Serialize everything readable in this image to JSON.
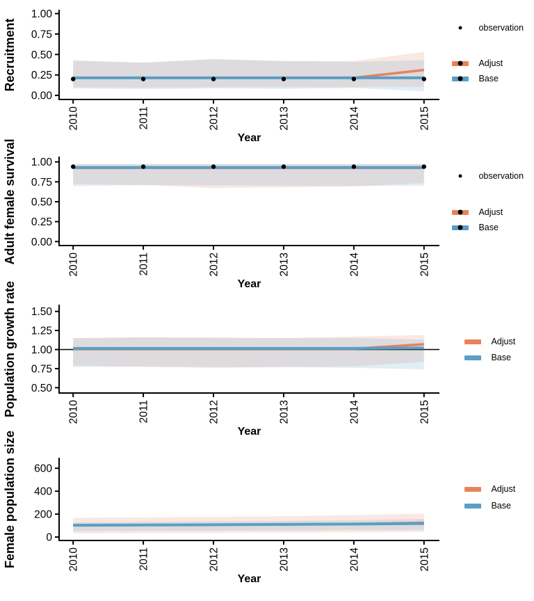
{
  "colors": {
    "adjust": "#E8825C",
    "base": "#5B9EC6",
    "adjust_ribbon": "rgba(230,125,92,0.18)",
    "base_ribbon": "rgba(91,158,198,0.18)",
    "observation": "#000000",
    "axis": "#000000",
    "reference_line": "#000000"
  },
  "legend_labels": {
    "observation": "observation",
    "adjust": "Adjust",
    "base": "Base"
  },
  "chart_data": [
    {
      "type": "line",
      "y_title": "Recruitment",
      "x_title": "Year",
      "legend_position": "right",
      "grid": false,
      "x_ticks": [
        2010,
        2011,
        2012,
        2013,
        2014,
        2015
      ],
      "y_ticks": [
        {
          "v": 1.0,
          "label": "1.00"
        },
        {
          "v": 0.75,
          "label": "0.75"
        },
        {
          "v": 0.5,
          "label": "0.50"
        },
        {
          "v": 0.25,
          "label": "0.25"
        },
        {
          "v": 0.0,
          "label": "0.00"
        }
      ],
      "xlim": [
        2009.8,
        2015.22
      ],
      "ylim": [
        -0.05,
        1.03
      ],
      "hline": null,
      "series": {
        "observation": {
          "x": [
            2010,
            2011,
            2012,
            2013,
            2014,
            2015
          ],
          "y": [
            0.2,
            0.2,
            0.2,
            0.2,
            0.2,
            0.2
          ]
        },
        "adjust": {
          "x": [
            2010,
            2011,
            2012,
            2013,
            2014,
            2015
          ],
          "y": [
            0.215,
            0.215,
            0.215,
            0.215,
            0.215,
            0.31
          ],
          "upper": [
            0.42,
            0.4,
            0.445,
            0.42,
            0.42,
            0.53
          ],
          "lower": [
            0.1,
            0.095,
            0.1,
            0.1,
            0.1,
            0.105
          ]
        },
        "base": {
          "x": [
            2010,
            2011,
            2012,
            2013,
            2014,
            2015
          ],
          "y": [
            0.215,
            0.215,
            0.215,
            0.215,
            0.215,
            0.215
          ],
          "upper": [
            0.43,
            0.4,
            0.44,
            0.42,
            0.41,
            0.43
          ],
          "lower": [
            0.085,
            0.075,
            0.085,
            0.08,
            0.09,
            0.05
          ]
        }
      }
    },
    {
      "type": "line",
      "y_title": "Adult female survival",
      "x_title": "Year",
      "legend_position": "right",
      "grid": false,
      "x_ticks": [
        2010,
        2011,
        2012,
        2013,
        2014,
        2015
      ],
      "y_ticks": [
        {
          "v": 1.0,
          "label": "1.00"
        },
        {
          "v": 0.75,
          "label": "0.75"
        },
        {
          "v": 0.5,
          "label": "0.50"
        },
        {
          "v": 0.25,
          "label": "0.25"
        },
        {
          "v": 0.0,
          "label": "0.00"
        }
      ],
      "xlim": [
        2009.8,
        2015.22
      ],
      "ylim": [
        -0.05,
        1.05
      ],
      "hline": null,
      "series": {
        "observation": {
          "x": [
            2010,
            2011,
            2012,
            2013,
            2014,
            2015
          ],
          "y": [
            0.94,
            0.94,
            0.94,
            0.94,
            0.94,
            0.94
          ]
        },
        "adjust": {
          "x": [
            2010,
            2011,
            2012,
            2013,
            2014,
            2015
          ],
          "y": [
            0.925,
            0.925,
            0.925,
            0.925,
            0.925,
            0.925
          ],
          "upper": [
            0.97,
            0.97,
            0.97,
            0.97,
            0.97,
            0.97
          ],
          "lower": [
            0.72,
            0.71,
            0.67,
            0.68,
            0.69,
            0.735
          ]
        },
        "base": {
          "x": [
            2010,
            2011,
            2012,
            2013,
            2014,
            2015
          ],
          "y": [
            0.93,
            0.93,
            0.93,
            0.93,
            0.93,
            0.93
          ],
          "upper": [
            0.975,
            0.975,
            0.975,
            0.975,
            0.975,
            0.975
          ],
          "lower": [
            0.695,
            0.71,
            0.705,
            0.7,
            0.7,
            0.7
          ]
        }
      }
    },
    {
      "type": "line",
      "y_title": "Population growth rate",
      "x_title": "Year",
      "legend_position": "right",
      "grid": false,
      "x_ticks": [
        2010,
        2011,
        2012,
        2013,
        2014,
        2015
      ],
      "y_ticks": [
        {
          "v": 1.5,
          "label": "1.50"
        },
        {
          "v": 1.25,
          "label": "1.25"
        },
        {
          "v": 1.0,
          "label": "1.00"
        },
        {
          "v": 0.75,
          "label": "0.75"
        },
        {
          "v": 0.5,
          "label": "0.50"
        }
      ],
      "xlim": [
        2009.8,
        2015.22
      ],
      "ylim": [
        0.43,
        1.57
      ],
      "hline": 1.0,
      "series": {
        "adjust": {
          "x": [
            2010,
            2011,
            2012,
            2013,
            2014,
            2015
          ],
          "y": [
            1.01,
            1.01,
            1.01,
            1.01,
            1.01,
            1.07
          ],
          "upper": [
            1.15,
            1.16,
            1.16,
            1.15,
            1.17,
            1.19
          ],
          "lower": [
            0.79,
            0.77,
            0.76,
            0.77,
            0.78,
            0.84
          ]
        },
        "base": {
          "x": [
            2010,
            2011,
            2012,
            2013,
            2014,
            2015
          ],
          "y": [
            1.015,
            1.015,
            1.015,
            1.015,
            1.015,
            1.02
          ],
          "upper": [
            1.15,
            1.16,
            1.15,
            1.15,
            1.15,
            1.13
          ],
          "lower": [
            0.77,
            0.78,
            0.77,
            0.77,
            0.76,
            0.74
          ]
        }
      }
    },
    {
      "type": "line",
      "y_title": "Female population size",
      "x_title": "Year",
      "legend_position": "right",
      "grid": false,
      "x_ticks": [
        2010,
        2011,
        2012,
        2013,
        2014,
        2015
      ],
      "y_ticks": [
        {
          "v": 600,
          "label": "600"
        },
        {
          "v": 400,
          "label": "400"
        },
        {
          "v": 200,
          "label": "200"
        },
        {
          "v": 0,
          "label": "0"
        }
      ],
      "xlim": [
        2009.8,
        2015.22
      ],
      "ylim": [
        -30,
        680
      ],
      "hline": null,
      "series": {
        "adjust": {
          "x": [
            2010,
            2011,
            2012,
            2013,
            2014,
            2015
          ],
          "y": [
            103,
            105,
            107,
            110,
            114,
            125
          ],
          "upper": [
            168,
            172,
            176,
            182,
            192,
            205
          ],
          "lower": [
            32,
            34,
            36,
            38,
            40,
            44
          ]
        },
        "base": {
          "x": [
            2010,
            2011,
            2012,
            2013,
            2014,
            2015
          ],
          "y": [
            103,
            105,
            107,
            110,
            113,
            118
          ],
          "upper": [
            128,
            132,
            136,
            140,
            146,
            158
          ],
          "lower": [
            52,
            54,
            56,
            58,
            60,
            62
          ]
        }
      }
    }
  ]
}
